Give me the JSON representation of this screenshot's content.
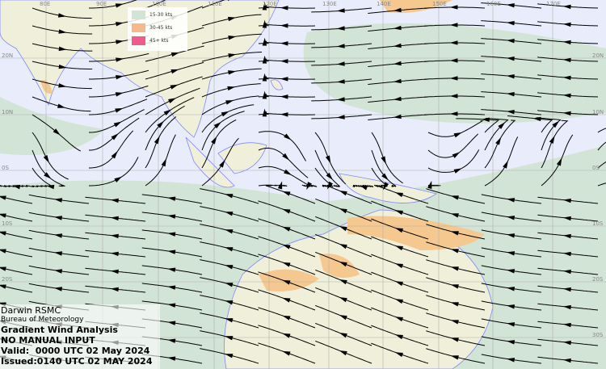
{
  "map": {
    "colors": {
      "ocean": "#e9ecfb",
      "land": "#f0f0da",
      "band_15_30": "#d2e4d6",
      "band_30_45": "#f5c88f",
      "band_45_plus": "#f05a8c",
      "coast": "#7f86ff",
      "streamline": "#000000",
      "grid": "#b0b0b0"
    },
    "longitude_labels": [
      "80E",
      "90E",
      "100E",
      "110E",
      "120E",
      "130E",
      "140E",
      "150E",
      "160E",
      "170E"
    ],
    "latitude_labels": [
      "20N",
      "10N",
      "0S",
      "10S",
      "20S",
      "30S"
    ]
  },
  "legend": {
    "items": [
      {
        "label": "15-30 kts",
        "color": "#d2e4d6"
      },
      {
        "label": "30-45 kts",
        "color": "#f5b98a"
      },
      {
        "label": "45+ kts",
        "color": "#f05a8c"
      }
    ]
  },
  "info": {
    "centre": "Darwin RSMC",
    "agency": "Bureau of Meteorology",
    "product": "Gradient Wind Analysis",
    "note": "NO MANUAL INPUT",
    "valid": "Valid:  0000 UTC 02 May 2024",
    "issued": "Issued:0140 UTC 02 MAY 2024"
  }
}
